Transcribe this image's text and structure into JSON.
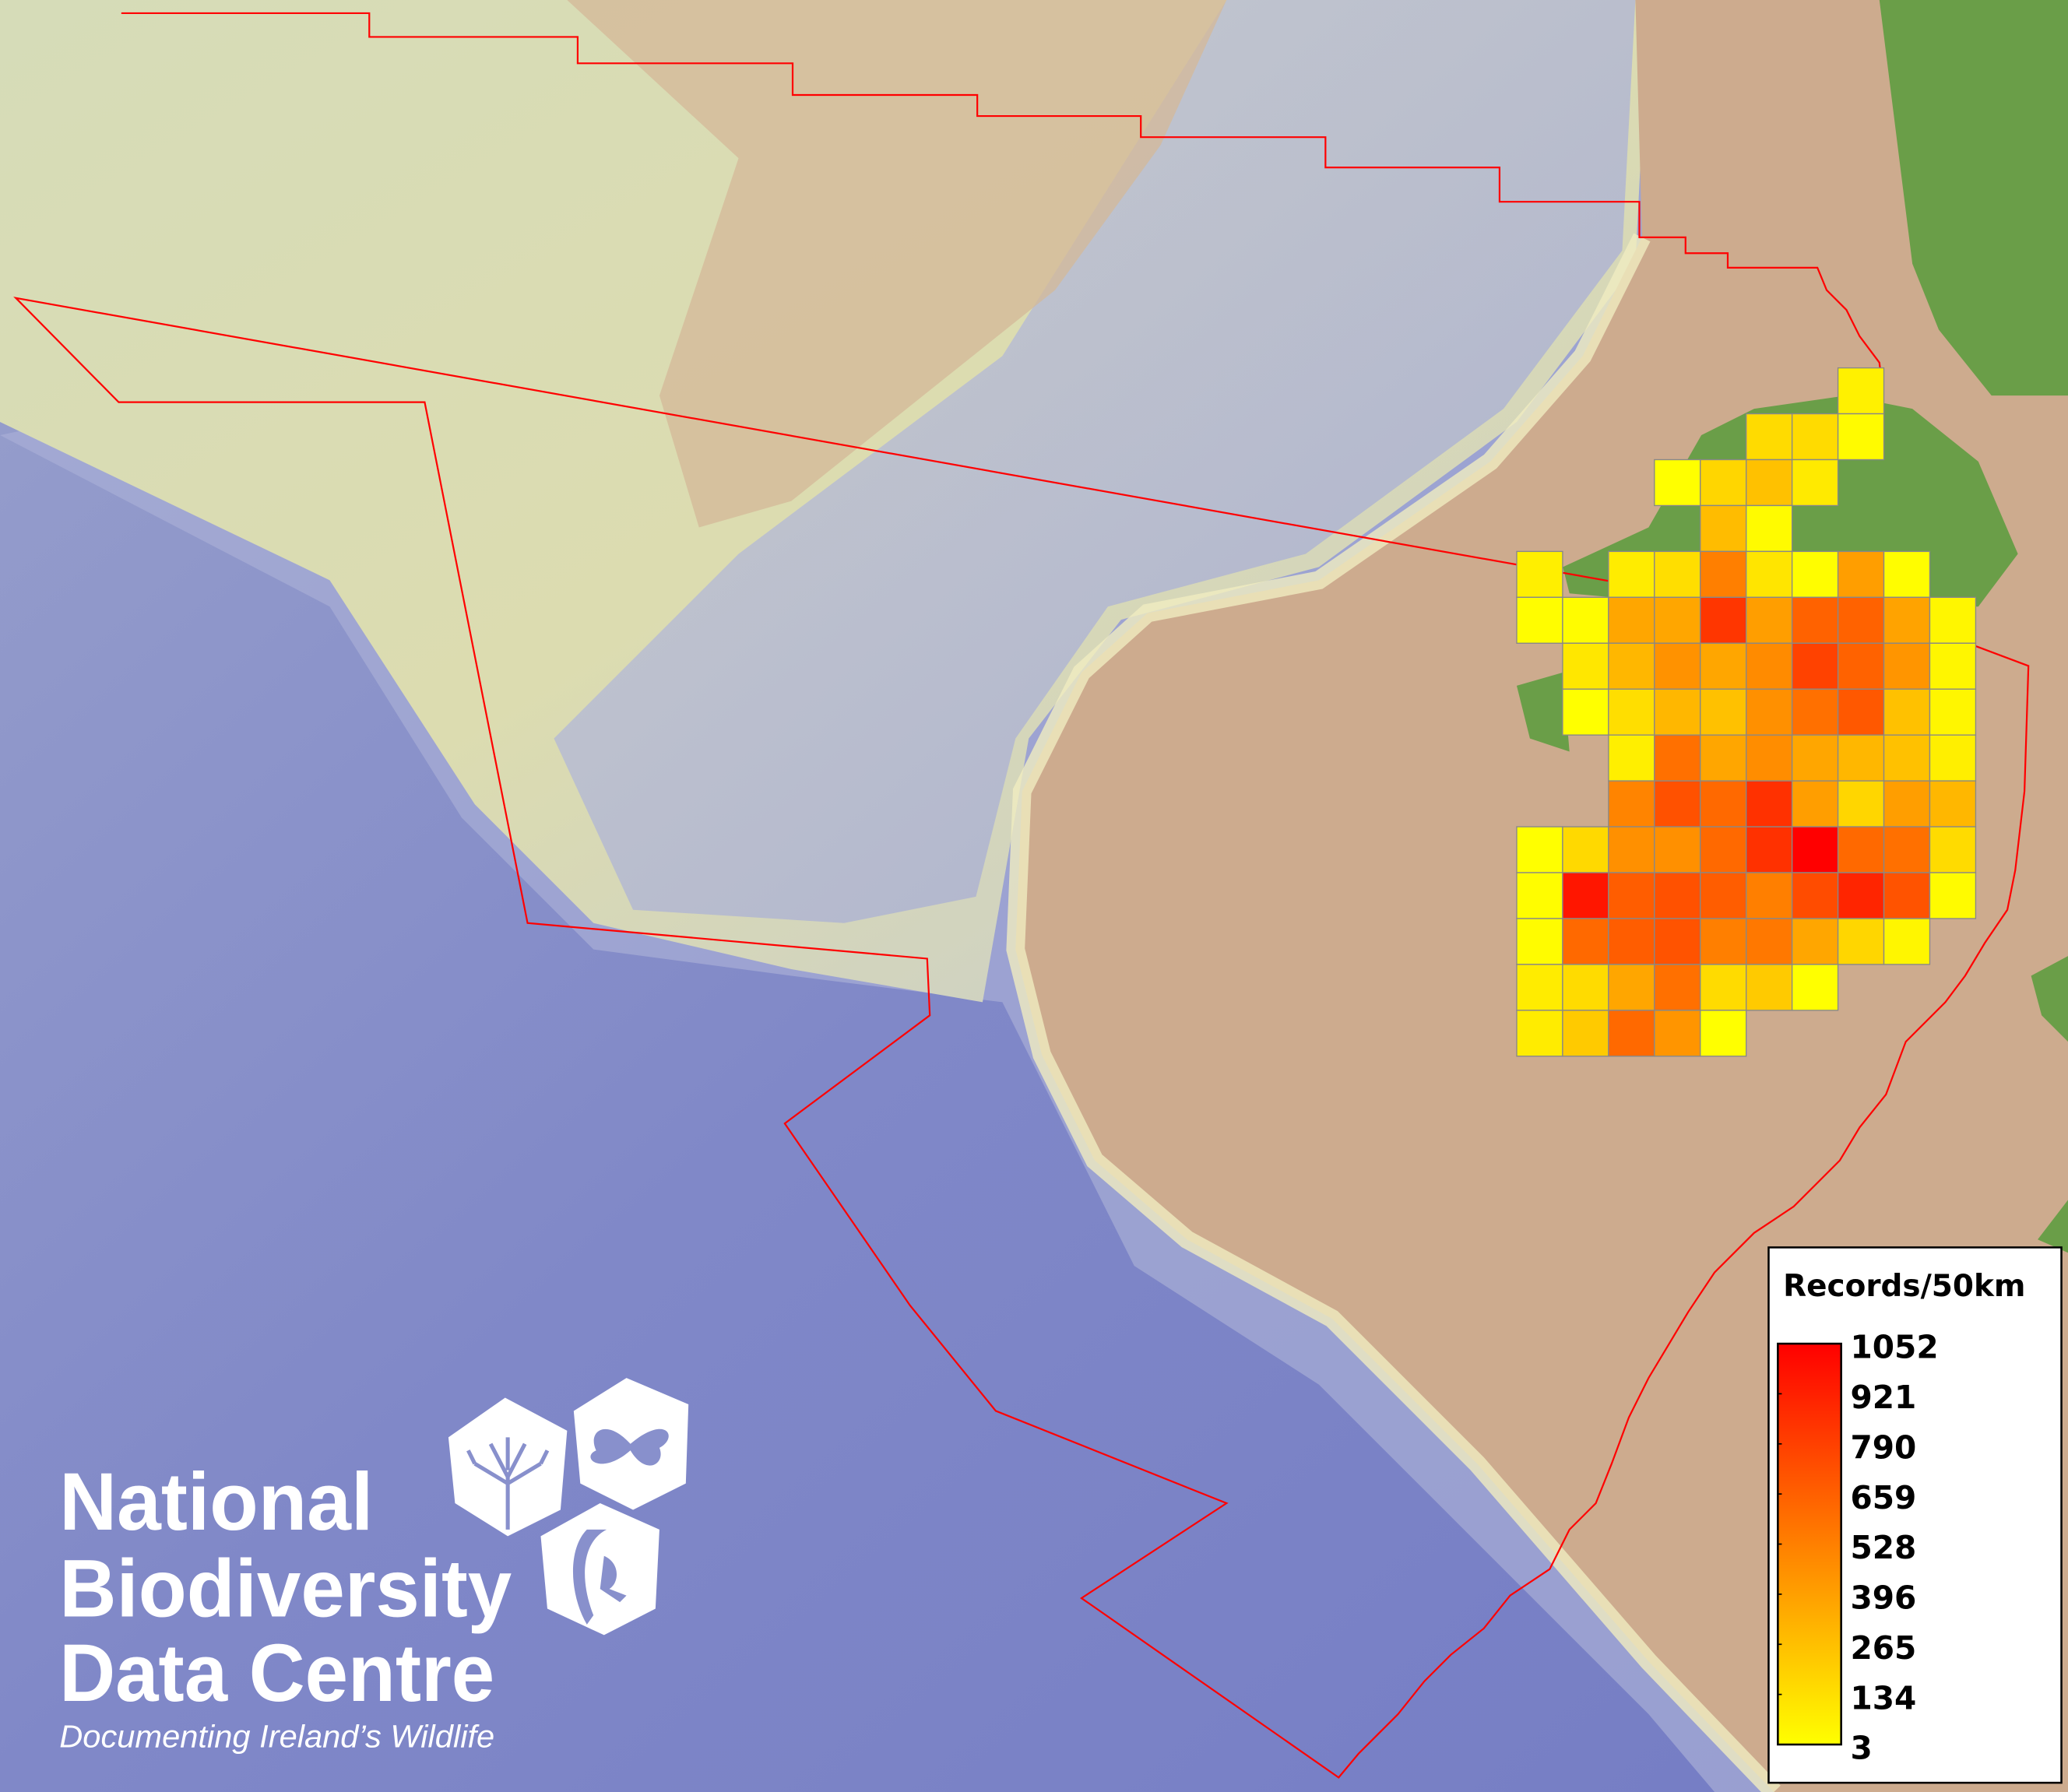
{
  "map": {
    "colors": {
      "ocean": "#8088c8",
      "shelf": "#dcdcb4",
      "land_shelf": "#cdab8e",
      "land": "#6a9e48",
      "boundary": "#ff0000",
      "grid_border": "#888888"
    },
    "legend": {
      "title": "Records/50km",
      "min": 3,
      "max": 1052,
      "min_color": "#ffff00",
      "max_color": "#ff0000",
      "ticks": [
        "1052",
        "921",
        "790",
        "659",
        "528",
        "396",
        "265",
        "134",
        "3"
      ]
    },
    "grid": {
      "cell_size": "50km",
      "rows": [
        [
          null,
          null,
          null,
          null,
          null,
          null,
          null,
          60,
          null,
          null
        ],
        [
          null,
          null,
          null,
          null,
          null,
          150,
          150,
          20,
          null,
          null
        ],
        [
          null,
          null,
          null,
          5,
          170,
          260,
          90,
          null,
          null,
          null
        ],
        [
          null,
          null,
          null,
          null,
          280,
          20,
          null,
          null,
          null,
          null
        ],
        [
          70,
          null,
          80,
          140,
          530,
          110,
          10,
          400,
          10,
          null
        ],
        [
          10,
          15,
          370,
          370,
          830,
          400,
          650,
          650,
          380,
          40
        ],
        [
          null,
          100,
          300,
          450,
          370,
          480,
          780,
          650,
          440,
          40
        ],
        [
          null,
          5,
          140,
          300,
          260,
          460,
          590,
          690,
          260,
          40
        ],
        [
          null,
          null,
          70,
          590,
          370,
          470,
          370,
          300,
          260,
          70
        ],
        [
          null,
          null,
          510,
          720,
          620,
          850,
          400,
          170,
          400,
          300
        ],
        [
          5,
          160,
          460,
          460,
          620,
          850,
          1052,
          620,
          590,
          150
        ],
        [
          10,
          960,
          670,
          720,
          670,
          530,
          740,
          900,
          710,
          20
        ],
        [
          15,
          620,
          670,
          710,
          530,
          560,
          370,
          170,
          40,
          null
        ],
        [
          80,
          150,
          370,
          590,
          150,
          220,
          5,
          null,
          null,
          null
        ],
        [
          80,
          220,
          620,
          440,
          5,
          null,
          null,
          null,
          null,
          null
        ]
      ]
    },
    "logo": {
      "line1": "National",
      "line2": "Biodiversity",
      "line3": "Data Centre",
      "tagline": "Documenting Ireland’s Wildlife",
      "icons": [
        "tree-icon",
        "butterfly-icon",
        "seahorse-icon"
      ]
    }
  }
}
